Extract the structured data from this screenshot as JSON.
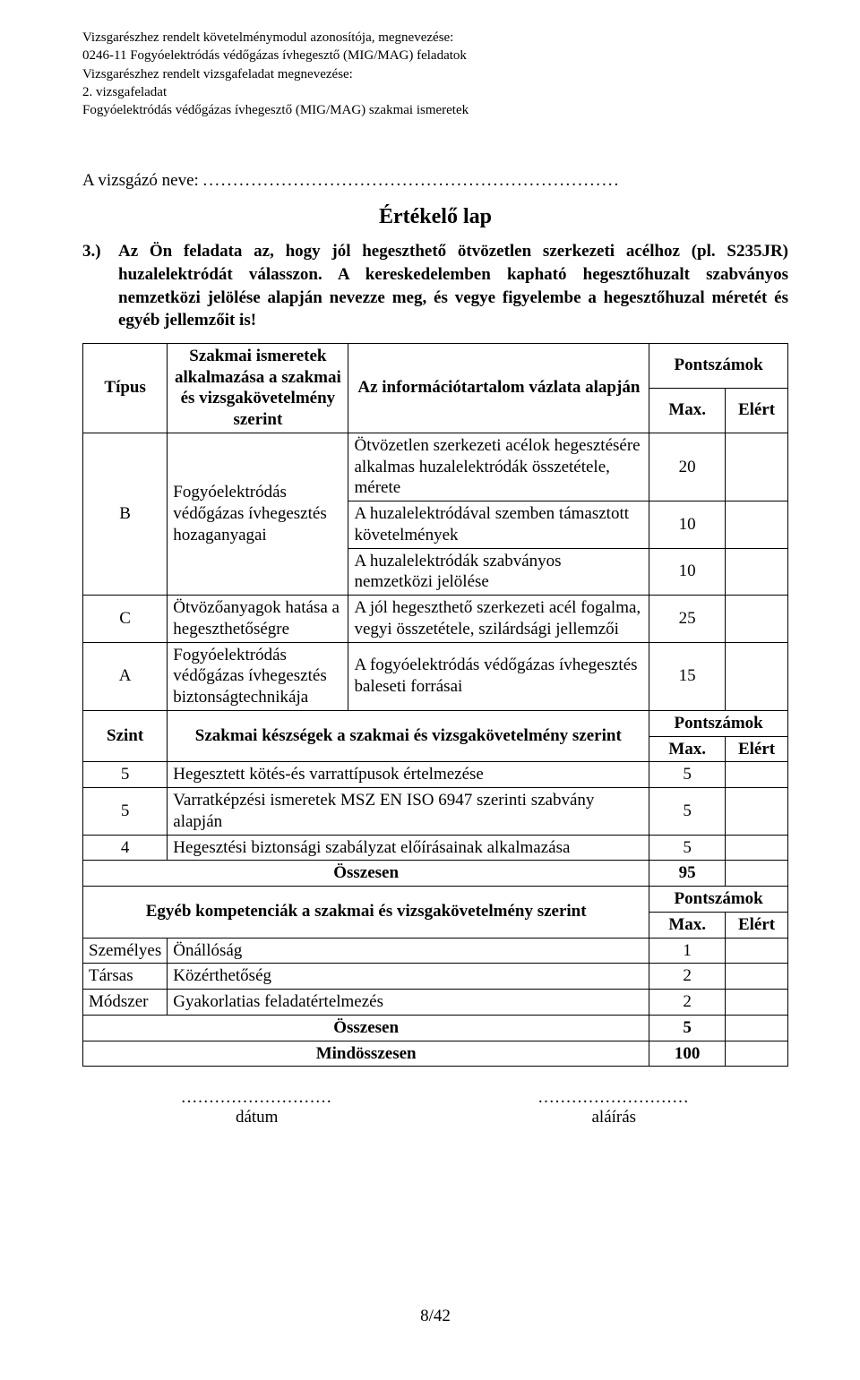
{
  "header": {
    "l1": "Vizsgarészhez rendelt követelménymodul azonosítója, megnevezése:",
    "l2": "0246-11 Fogyóelektródás védőgázas ívhegesztő (MIG/MAG) feladatok",
    "l3": "Vizsgarészhez rendelt vizsgafeladat megnevezése:",
    "l4": "2. vizsgafeladat",
    "l5": "Fogyóelektródás védőgázas ívhegesztő (MIG/MAG) szakmai ismeretek"
  },
  "examinee": {
    "label": "A vizsgázó neve:",
    "dots": "....................................................................."
  },
  "title": "Értékelő lap",
  "task": {
    "num": "3.)",
    "text": "Az Ön feladata az, hogy jól hegeszthető ötvözetlen szerkezeti acélhoz (pl. S235JR) huzalelektródát válasszon. A kereskedelemben kapható hegesztőhuzalt szabványos nemzetközi jelölése alapján nevezze meg, és vegye figyelembe a hegesztőhuzal méretét és egyéb jellemzőit is!"
  },
  "tbl": {
    "h_tipus": "Típus",
    "h_szak": "Szakmai ismeretek alkalmazása a szakmai és vizsgakövetelmény szerint",
    "h_info": "Az információtartalom vázlata alapján",
    "h_pont": "Pontszámok",
    "h_max": "Max.",
    "h_elert": "Elért",
    "b_type": "B",
    "b_szak": "Fogyóelektródás védőgázas ívhegesztés hozaganyagai",
    "b_info1": "Ötvözetlen szerkezeti acélok hegesztésére alkalmas huzalelektródák összetétele, mérete",
    "b_max1": "20",
    "b_info2": "A huzalelektródával szemben támasztott követelmények",
    "b_max2": "10",
    "b_info3": "A huzalelektródák szabványos nemzetközi jelölése",
    "b_max3": "10",
    "c_type": "C",
    "c_szak": "Ötvözőanyagok hatása a hegeszthetőségre",
    "c_info": "A jól hegeszthető szerkezeti acél fogalma, vegyi összetétele, szilárdsági jellemzői",
    "c_max": "25",
    "a_type": "A",
    "a_szak": "Fogyóelektródás védőgázas ívhegesztés biztonságtechnikája",
    "a_info": "A fogyóelektródás védőgázas ívhegesztés baleseti forrásai",
    "a_max": "15",
    "szint": "Szint",
    "szint_head": "Szakmai készségek a szakmai és vizsgakövetelmény szerint",
    "s1_n": "5",
    "s1_t": "Hegesztett kötés-és varrattípusok értelmezése",
    "s1_m": "5",
    "s2_n": "5",
    "s2_t": "Varratképzési ismeretek MSZ EN ISO 6947 szerinti szabvány alapján",
    "s2_m": "5",
    "s3_n": "4",
    "s3_t": "Hegesztési biztonsági szabályzat előírásainak alkalmazása",
    "s3_m": "5",
    "ossz": "Összesen",
    "ossz_m": "95",
    "egyeb": "Egyéb kompetenciák a szakmai és vizsgakövetelmény szerint",
    "e1_a": "Személyes",
    "e1_b": "Önállóság",
    "e1_m": "1",
    "e2_a": "Társas",
    "e2_b": "Közérthetőség",
    "e2_m": "2",
    "e3_a": "Módszer",
    "e3_b": "Gyakorlatias feladatértelmezés",
    "e3_m": "2",
    "ossz2_m": "5",
    "mind": "Mindösszesen",
    "mind_m": "100"
  },
  "sig": {
    "dots": "...........................",
    "date": "dátum",
    "sign": "aláírás"
  },
  "footer": "8/42"
}
